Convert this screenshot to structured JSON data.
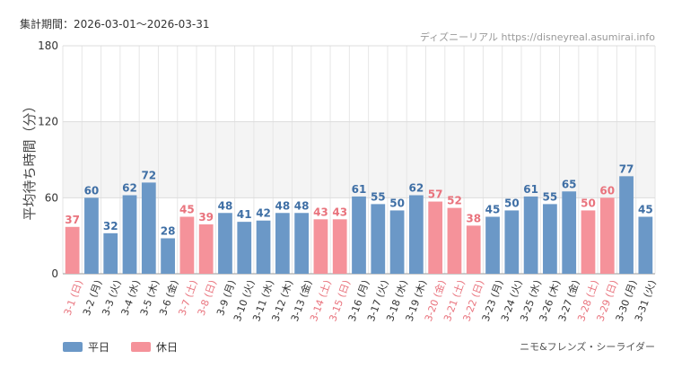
{
  "period_label": "集計期間：2026-03-01〜2026-03-31",
  "source_label": "ディズニーリアル https://disneyreal.asumirai.info",
  "ride_name": "ニモ&フレンズ・シーライダー",
  "colors": {
    "weekday": "#6b98c7",
    "holiday": "#f5929a",
    "holiday_text": "#e9737d",
    "weekday_text": "#3f6fa5"
  },
  "chart_data": {
    "type": "bar",
    "ylabel": "平均待ち時間（分）",
    "ylim": [
      0,
      180
    ],
    "yticks": [
      0,
      60,
      120,
      180
    ],
    "categories": [
      "3-1 (日)",
      "3-2 (月)",
      "3-3 (火)",
      "3-4 (水)",
      "3-5 (木)",
      "3-6 (金)",
      "3-7 (土)",
      "3-8 (日)",
      "3-9 (月)",
      "3-10 (火)",
      "3-11 (水)",
      "3-12 (木)",
      "3-13 (金)",
      "3-14 (土)",
      "3-15 (日)",
      "3-16 (月)",
      "3-17 (火)",
      "3-18 (水)",
      "3-19 (木)",
      "3-20 (金)",
      "3-21 (土)",
      "3-22 (日)",
      "3-23 (月)",
      "3-24 (火)",
      "3-25 (水)",
      "3-26 (木)",
      "3-27 (金)",
      "3-28 (土)",
      "3-29 (日)",
      "3-30 (月)",
      "3-31 (火)"
    ],
    "values": [
      37,
      60,
      32,
      62,
      72,
      28,
      45,
      39,
      48,
      41,
      42,
      48,
      48,
      43,
      43,
      61,
      55,
      50,
      62,
      57,
      52,
      38,
      45,
      50,
      61,
      55,
      65,
      50,
      60,
      77,
      45
    ],
    "day_type": [
      "holiday",
      "weekday",
      "weekday",
      "weekday",
      "weekday",
      "weekday",
      "holiday",
      "holiday",
      "weekday",
      "weekday",
      "weekday",
      "weekday",
      "weekday",
      "holiday",
      "holiday",
      "weekday",
      "weekday",
      "weekday",
      "weekday",
      "holiday",
      "holiday",
      "holiday",
      "weekday",
      "weekday",
      "weekday",
      "weekday",
      "weekday",
      "holiday",
      "holiday",
      "weekday",
      "weekday"
    ],
    "legend": [
      "平日",
      "休日"
    ],
    "shaded_band": [
      60,
      120
    ]
  }
}
